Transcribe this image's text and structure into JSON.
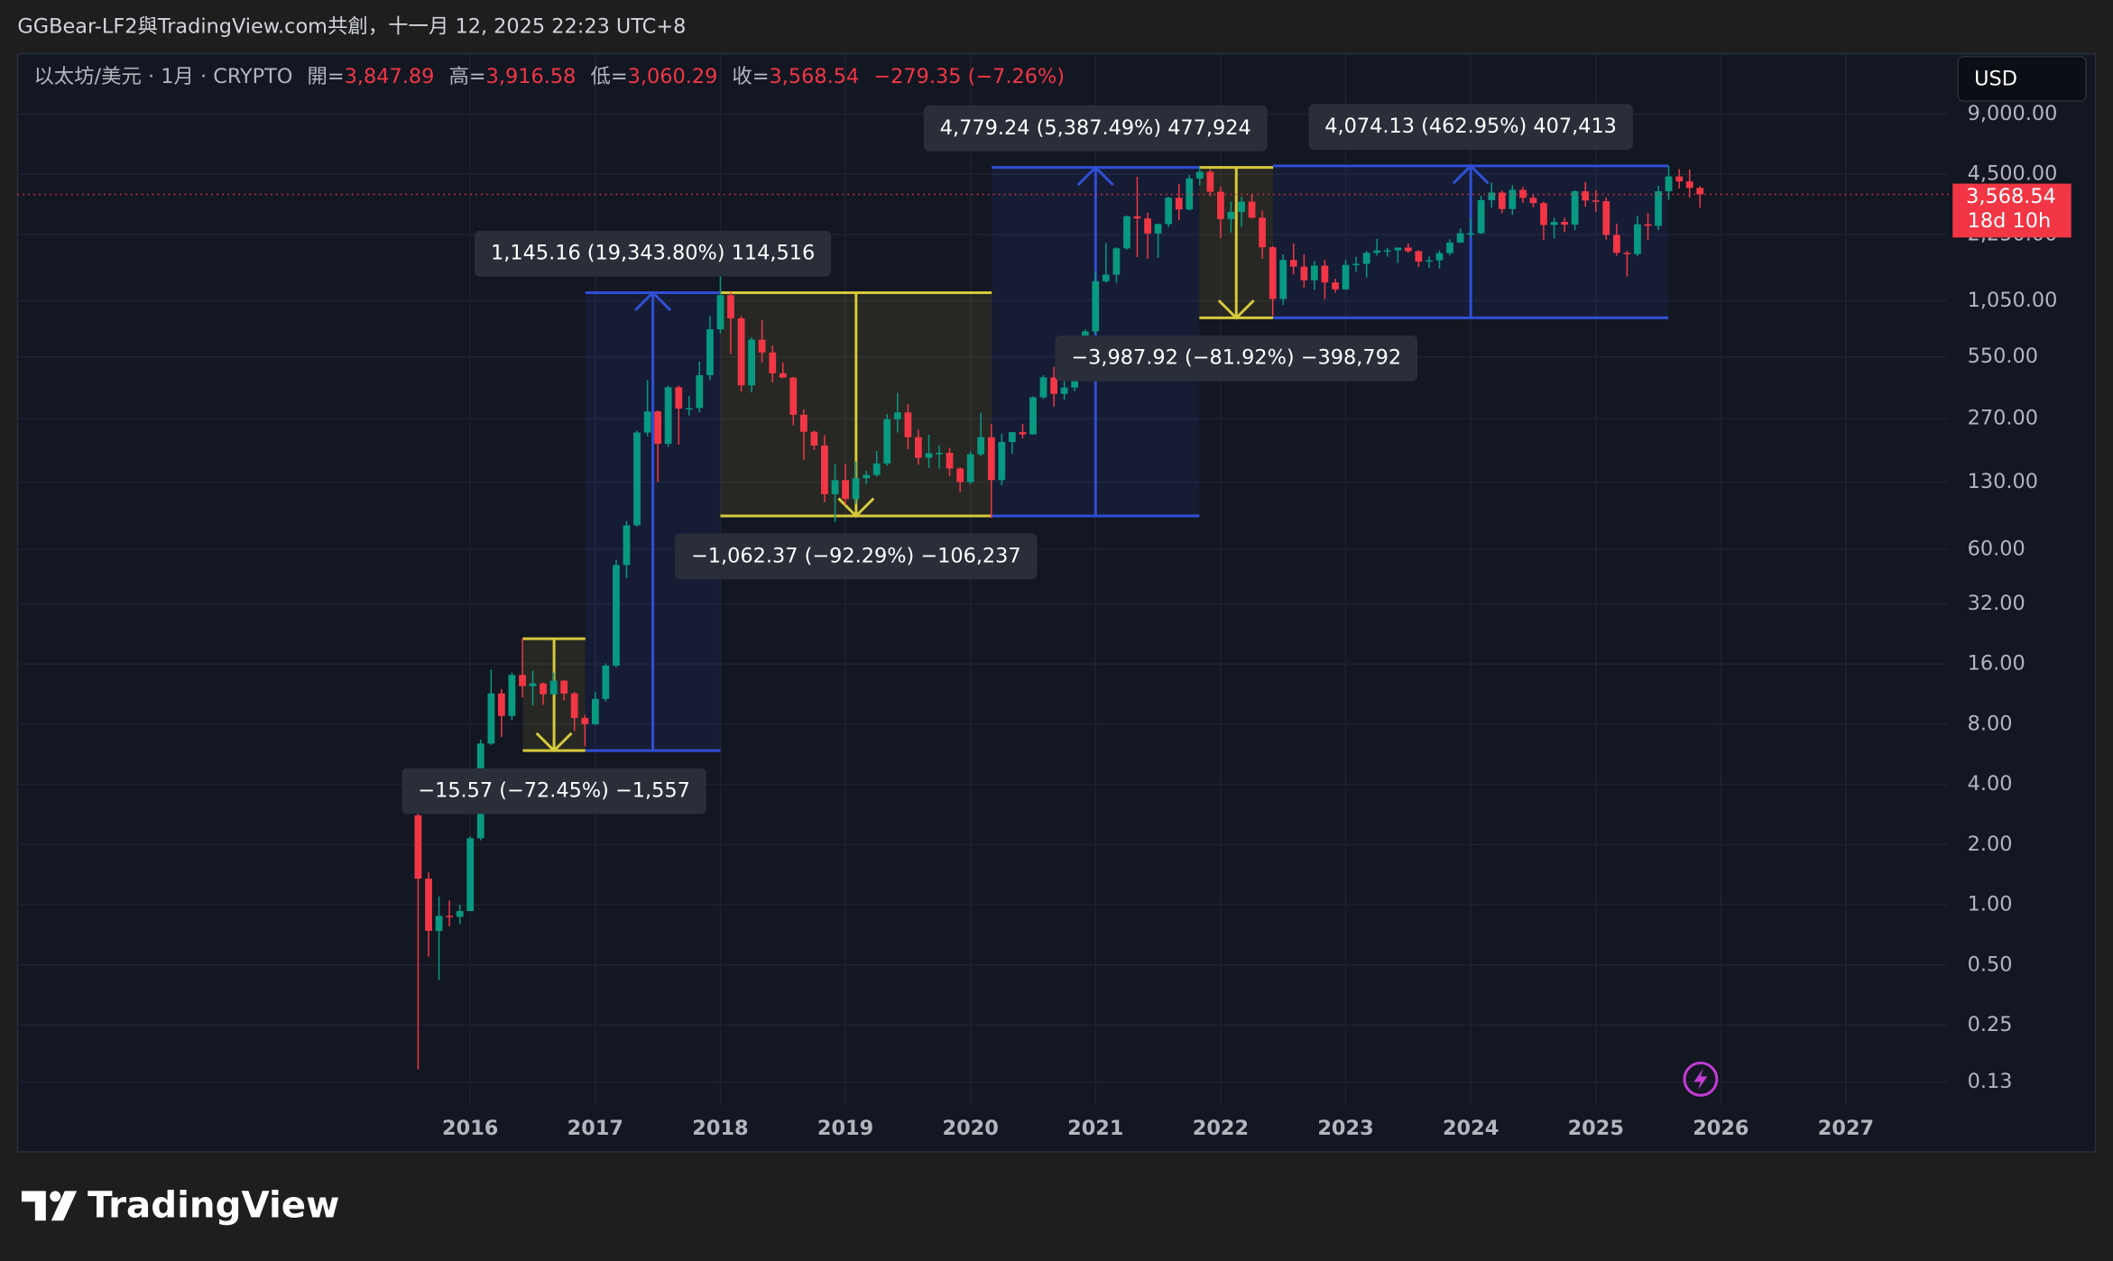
{
  "header": {
    "attribution": "GGBear-LF2與TradingView.com共創，十一月 12, 2025 22:23 UTC+8",
    "symbol": "以太坊/美元 · 1月 · CRYPTO",
    "ohlc": [
      {
        "label": "開=",
        "value": "3,847.89"
      },
      {
        "label": "高=",
        "value": "3,916.58"
      },
      {
        "label": "低=",
        "value": "3,060.29"
      },
      {
        "label": "收=",
        "value": "3,568.54"
      }
    ],
    "change": "−279.35 (−7.26%)",
    "currency": "USD"
  },
  "chart_data": {
    "type": "candlestick",
    "x": [
      2015.583,
      2015.667,
      2015.75,
      2015.833,
      2015.917,
      2016,
      2016.083,
      2016.167,
      2016.25,
      2016.333,
      2016.417,
      2016.5,
      2016.583,
      2016.667,
      2016.75,
      2016.833,
      2016.917,
      2017,
      2017.083,
      2017.167,
      2017.25,
      2017.333,
      2017.417,
      2017.5,
      2017.583,
      2017.667,
      2017.75,
      2017.833,
      2017.917,
      2018,
      2018.083,
      2018.167,
      2018.25,
      2018.333,
      2018.417,
      2018.5,
      2018.583,
      2018.667,
      2018.75,
      2018.833,
      2018.917,
      2019,
      2019.083,
      2019.167,
      2019.25,
      2019.333,
      2019.417,
      2019.5,
      2019.583,
      2019.667,
      2019.75,
      2019.833,
      2019.917,
      2020,
      2020.083,
      2020.167,
      2020.25,
      2020.333,
      2020.417,
      2020.5,
      2020.583,
      2020.667,
      2020.75,
      2020.833,
      2020.917,
      2021,
      2021.083,
      2021.167,
      2021.25,
      2021.333,
      2021.417,
      2021.5,
      2021.583,
      2021.667,
      2021.75,
      2021.833,
      2021.917,
      2022,
      2022.083,
      2022.167,
      2022.25,
      2022.333,
      2022.417,
      2022.5,
      2022.583,
      2022.667,
      2022.75,
      2022.833,
      2022.917,
      2023,
      2023.083,
      2023.167,
      2023.25,
      2023.333,
      2023.417,
      2023.5,
      2023.583,
      2023.667,
      2023.75,
      2023.833,
      2023.917,
      2024,
      2024.083,
      2024.167,
      2024.25,
      2024.333,
      2024.417,
      2024.5,
      2024.583,
      2024.667,
      2024.75,
      2024.833,
      2024.917,
      2025,
      2025.083,
      2025.167,
      2025.25,
      2025.333,
      2025.417,
      2025.5,
      2025.583,
      2025.667,
      2025.75,
      2025.833
    ],
    "open": [
      2.8,
      1.35,
      0.74,
      0.88,
      0.87,
      0.93,
      2.15,
      6.4,
      11.4,
      8.8,
      14.1,
      12.4,
      12.8,
      11.3,
      13.2,
      11.4,
      8.6,
      8.0,
      10.7,
      15.7,
      50,
      79,
      230,
      293,
      202,
      387,
      303,
      305,
      445,
      755,
      1118,
      856,
      396,
      670,
      578,
      455,
      433,
      282,
      232,
      198,
      113,
      133,
      107,
      136,
      141,
      161,
      268,
      290,
      218,
      172,
      181,
      182,
      152,
      130,
      179,
      218,
      133,
      206,
      231,
      225,
      345,
      434,
      359,
      386,
      615,
      737,
      1314,
      1416,
      1918,
      2773,
      2706,
      2275,
      2536,
      3433,
      3000,
      4288,
      4630,
      3682,
      2688,
      2920,
      3282,
      2728,
      1942,
      1070,
      1678,
      1554,
      1328,
      1572,
      1295,
      1196,
      1585,
      1605,
      1822,
      1870,
      1874,
      1934,
      1856,
      1645,
      1671,
      1815,
      2050,
      2282,
      2283,
      3340,
      3645,
      3015,
      3760,
      3430,
      3230,
      2510,
      2600,
      2520,
      3700,
      3330,
      3300,
      2240,
      1822,
      1795,
      2530,
      2485,
      3700,
      4390,
      4145,
      3847.89
    ],
    "high": [
      3.0,
      1.45,
      1.1,
      1.05,
      1.0,
      2.2,
      6.7,
      15,
      12,
      14.5,
      21.5,
      14.8,
      12.9,
      14.5,
      13.3,
      11.6,
      8.9,
      11.6,
      16.1,
      53,
      83,
      235,
      420,
      297,
      395,
      395,
      350,
      520,
      880,
      1420,
      1160,
      880,
      690,
      840,
      625,
      515,
      436,
      300,
      235,
      223,
      160,
      160,
      165,
      148,
      186,
      285,
      363,
      318,
      238,
      224,
      198,
      193,
      154,
      185,
      289,
      253,
      227,
      228,
      253,
      349,
      445,
      490,
      420,
      622,
      755,
      1475,
      2040,
      1943,
      2797,
      4380,
      2890,
      2550,
      3470,
      4030,
      4460,
      4868,
      4780,
      3900,
      3285,
      3480,
      3580,
      2955,
      1970,
      1790,
      2030,
      1790,
      1660,
      1680,
      1350,
      1680,
      1740,
      1860,
      2140,
      1930,
      1930,
      2030,
      1880,
      1750,
      1870,
      2130,
      2410,
      2720,
      3520,
      4090,
      3730,
      3975,
      3890,
      3560,
      3280,
      2730,
      2730,
      3740,
      4110,
      3745,
      3440,
      2550,
      1860,
      2790,
      2880,
      3940,
      4955,
      4770,
      4755,
      3916.58
    ],
    "low": [
      0.15,
      0.55,
      0.42,
      0.78,
      0.8,
      0.93,
      2.1,
      6.3,
      6.9,
      8.4,
      10.9,
      9.9,
      10.0,
      11.2,
      10.5,
      7.4,
      6.2,
      7.9,
      10.4,
      15.4,
      43,
      78,
      220,
      130,
      195,
      200,
      280,
      290,
      420,
      720,
      570,
      368,
      365,
      515,
      410,
      430,
      250,
      168,
      188,
      103,
      82,
      100,
      101,
      127,
      138,
      157,
      230,
      190,
      159,
      153,
      152,
      139,
      116,
      127,
      175,
      86,
      125,
      180,
      215,
      225,
      338,
      310,
      335,
      370,
      530,
      714,
      1290,
      1290,
      1890,
      1730,
      1700,
      1718,
      2450,
      2650,
      2970,
      3950,
      3500,
      2160,
      2300,
      2460,
      2710,
      1700,
      880,
      1000,
      1420,
      1220,
      1190,
      1070,
      1150,
      1190,
      1460,
      1370,
      1760,
      1740,
      1620,
      1820,
      1550,
      1530,
      1520,
      1770,
      2040,
      2170,
      2265,
      3060,
      2870,
      2820,
      3240,
      3080,
      2110,
      2150,
      2310,
      2360,
      3100,
      2920,
      2120,
      1760,
      1385,
      1750,
      2110,
      2370,
      3350,
      3820,
      3440,
      3060.29
    ],
    "close": [
      1.35,
      0.74,
      0.88,
      0.87,
      0.93,
      2.15,
      6.4,
      11.4,
      8.8,
      14.1,
      12.4,
      12.8,
      11.3,
      13.2,
      11.4,
      8.6,
      8.0,
      10.7,
      15.7,
      50,
      79,
      230,
      293,
      202,
      387,
      303,
      305,
      445,
      755,
      1118,
      856,
      396,
      670,
      578,
      455,
      433,
      282,
      232,
      198,
      113,
      133,
      107,
      136,
      141,
      161,
      268,
      290,
      218,
      172,
      181,
      182,
      152,
      130,
      179,
      218,
      133,
      206,
      231,
      225,
      345,
      434,
      359,
      386,
      615,
      737,
      1314,
      1416,
      1918,
      2773,
      2706,
      2275,
      2536,
      3433,
      3000,
      4288,
      4630,
      3682,
      2688,
      2920,
      3282,
      2728,
      1942,
      1070,
      1678,
      1554,
      1328,
      1572,
      1295,
      1196,
      1585,
      1605,
      1822,
      1870,
      1874,
      1934,
      1856,
      1645,
      1671,
      1815,
      2050,
      2282,
      2283,
      3340,
      3645,
      3015,
      3760,
      3430,
      3230,
      2510,
      2600,
      2520,
      3700,
      3330,
      3300,
      2240,
      1822,
      1795,
      2530,
      2485,
      3700,
      4390,
      4145,
      3848,
      3568.54
    ],
    "up_color": "#089981",
    "down_color": "#f23645",
    "xlim": [
      2012.38,
      2027.81
    ],
    "xticks": [
      2016,
      2017,
      2018,
      2019,
      2020,
      2021,
      2022,
      2023,
      2024,
      2025,
      2026,
      2027
    ],
    "ylim": [
      0.1,
      18000
    ],
    "log_scale": true,
    "grid": true,
    "yticks": [
      0.13,
      0.25,
      {
        "value": 0.5,
        "label": "0.50"
      },
      {
        "value": 1,
        "label": "1.00"
      },
      {
        "value": 2,
        "label": "2.00"
      },
      {
        "value": 4,
        "label": "4.00"
      },
      {
        "value": 8,
        "label": "8.00"
      },
      {
        "value": 16,
        "label": "16.00"
      },
      {
        "value": 32,
        "label": "32.00"
      },
      {
        "value": 60,
        "label": "60.00"
      },
      {
        "value": 130,
        "label": "130.00"
      },
      {
        "value": 270,
        "label": "270.00"
      },
      {
        "value": 550,
        "label": "550.00"
      },
      {
        "value": 1050,
        "label": "1,050.00"
      },
      {
        "value": 2250,
        "label": "2,250.00"
      },
      {
        "value": 4500,
        "label": "4,500.00"
      },
      {
        "value": 9000,
        "label": "9,000.00"
      }
    ],
    "last_price": {
      "value": 3568.54,
      "label": "3,568.54",
      "countdown": "18d 10h",
      "color": "#f23645"
    },
    "annotations": [
      {
        "x": [
          2016.92,
          2018.0
        ],
        "from": 5.9,
        "to": 1151,
        "color": "#2f4fd6",
        "label": "1,145.16 (19,343.80%) 114,516"
      },
      {
        "x": [
          2016.42,
          2016.92
        ],
        "from": 21.4,
        "to": 5.9,
        "color": "#d6c93a",
        "label": "−15.57 (−72.45%) −1,557"
      },
      {
        "x": [
          2018.0,
          2020.17
        ],
        "from": 1151,
        "to": 88,
        "color": "#d6c93a",
        "label": "−1,062.37 (−92.29%) −106,237"
      },
      {
        "x": [
          2020.17,
          2021.83
        ],
        "from": 88,
        "to": 4868,
        "color": "#2f4fd6",
        "label": "4,779.24 (5,387.49%) 477,924"
      },
      {
        "x": [
          2021.83,
          2022.42
        ],
        "from": 4868,
        "to": 861,
        "color": "#d6c93a",
        "label": "−3,987.92 (−81.92%) −398,792"
      },
      {
        "x": [
          2022.42,
          2025.58
        ],
        "from": 861,
        "to": 4955,
        "color": "#2f4fd6",
        "label": "4,074.13 (462.95%) 407,413"
      }
    ]
  },
  "footer": {
    "logo": "TradingView"
  }
}
